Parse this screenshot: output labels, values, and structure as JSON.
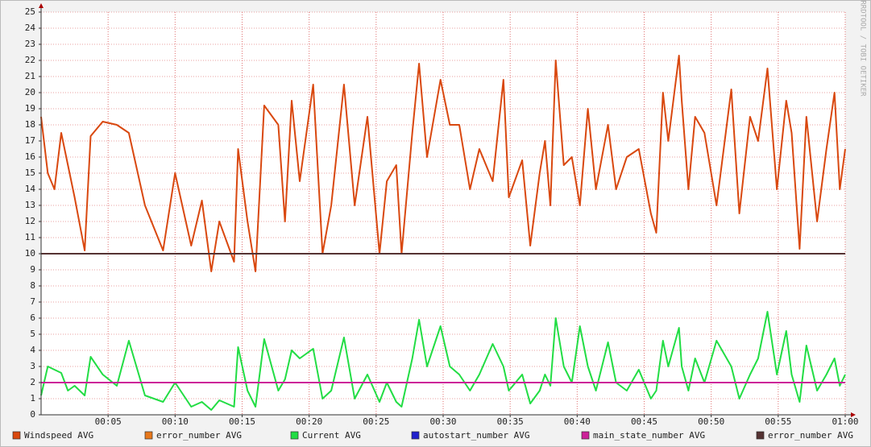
{
  "chart_data": {
    "type": "line",
    "watermark": "RRDTOOL / TOBI OETIKER",
    "xlim": [
      0,
      60
    ],
    "xticks": [
      {
        "value": 5,
        "label": "00:05"
      },
      {
        "value": 10,
        "label": "00:10"
      },
      {
        "value": 15,
        "label": "00:15"
      },
      {
        "value": 20,
        "label": "00:20"
      },
      {
        "value": 25,
        "label": "00:25"
      },
      {
        "value": 30,
        "label": "00:30"
      },
      {
        "value": 35,
        "label": "00:35"
      },
      {
        "value": 40,
        "label": "00:40"
      },
      {
        "value": 45,
        "label": "00:45"
      },
      {
        "value": 50,
        "label": "00:50"
      },
      {
        "value": 55,
        "label": "00:55"
      },
      {
        "value": 60,
        "label": "01:00"
      }
    ],
    "ylim": [
      0,
      25
    ],
    "yticks": [
      0,
      1,
      2,
      3,
      4,
      5,
      6,
      7,
      8,
      9,
      10,
      11,
      12,
      13,
      14,
      15,
      16,
      17,
      18,
      19,
      20,
      21,
      22,
      23,
      24,
      25
    ],
    "grid": true,
    "legend": "bottom",
    "series": [
      {
        "name": "Windspeed AVG",
        "color": "#d9480f",
        "x": [
          0,
          0.5,
          1,
          1.5,
          2,
          2.5,
          3.25,
          3.7,
          4.6,
          5.65,
          6.55,
          7.75,
          9.1,
          10,
          11.2,
          12,
          12.7,
          13.3,
          14.4,
          14.7,
          15.4,
          16,
          16.65,
          17.7,
          18.2,
          18.7,
          19.3,
          20.3,
          21,
          21.65,
          22.6,
          23.4,
          24.35,
          25.25,
          25.8,
          26.5,
          26.9,
          27.7,
          28.2,
          28.8,
          29.8,
          30.5,
          31.2,
          32,
          32.7,
          33.7,
          34.5,
          34.9,
          35.9,
          36.5,
          37.2,
          37.6,
          38,
          38.4,
          39,
          39.6,
          40.2,
          40.8,
          41.4,
          42.3,
          42.9,
          43.7,
          44.6,
          45.5,
          45.9,
          46.4,
          46.8,
          47.6,
          47.8,
          48.3,
          48.8,
          49.5,
          50.4,
          51.5,
          52.1,
          52.9,
          53.5,
          54.2,
          54.9,
          55.6,
          56,
          56.6,
          57.1,
          57.9,
          58.6,
          59.2,
          59.6,
          60
        ],
        "values": [
          18.5,
          15,
          14,
          17.5,
          15.5,
          13.5,
          10.2,
          17.3,
          18.2,
          18,
          17.5,
          13,
          10.2,
          15,
          10.5,
          13.3,
          8.9,
          12,
          9.5,
          16.5,
          12,
          8.9,
          19.2,
          18,
          12,
          19.5,
          14.5,
          20.5,
          10,
          13,
          20.5,
          13,
          18.5,
          10,
          14.5,
          15.5,
          10,
          17.5,
          21.8,
          16,
          20.8,
          18,
          18,
          14,
          16.5,
          14.5,
          20.8,
          13.5,
          15.8,
          10.5,
          15,
          17,
          13,
          22,
          15.5,
          16,
          13,
          19,
          14,
          18,
          14,
          16,
          16.5,
          12.5,
          11.3,
          20,
          17,
          22.3,
          19.5,
          14,
          18.5,
          17.5,
          13,
          20.2,
          12.5,
          18.5,
          17,
          21.5,
          14,
          19.5,
          17.5,
          10.3,
          18.5,
          12,
          16.5,
          20,
          14,
          16.5
        ]
      },
      {
        "name": "error_number AVG",
        "color": "#e8781c"
      },
      {
        "name": "Current AVG",
        "color": "#22dd44",
        "x": [
          0,
          0.5,
          1,
          1.5,
          2,
          2.5,
          3.25,
          3.7,
          4.6,
          5.65,
          6.55,
          7.75,
          9.1,
          10,
          11.2,
          12,
          12.7,
          13.3,
          14.4,
          14.7,
          15.4,
          16,
          16.65,
          17.7,
          18.2,
          18.7,
          19.3,
          20.3,
          21,
          21.65,
          22.6,
          23.4,
          24.35,
          25.25,
          25.8,
          26.5,
          26.9,
          27.7,
          28.2,
          28.8,
          29.8,
          30.5,
          31.2,
          32,
          32.7,
          33.7,
          34.5,
          34.9,
          35.9,
          36.5,
          37.2,
          37.6,
          38,
          38.4,
          39,
          39.6,
          40.2,
          40.8,
          41.4,
          42.3,
          42.9,
          43.7,
          44.6,
          45.5,
          45.9,
          46.4,
          46.8,
          47.6,
          47.8,
          48.3,
          48.8,
          49.5,
          50.4,
          51.5,
          52.1,
          52.9,
          53.5,
          54.2,
          54.9,
          55.6,
          56,
          56.6,
          57.1,
          57.9,
          58.6,
          59.2,
          59.6,
          60
        ],
        "values": [
          1.2,
          3,
          2.8,
          2.6,
          1.5,
          1.8,
          1.2,
          3.6,
          2.5,
          1.8,
          4.6,
          1.2,
          0.8,
          2,
          0.5,
          0.8,
          0.3,
          0.9,
          0.5,
          4.2,
          1.5,
          0.5,
          4.7,
          1.5,
          2.2,
          4,
          3.5,
          4.1,
          1,
          1.5,
          4.8,
          1,
          2.5,
          0.8,
          2,
          0.8,
          0.5,
          3.5,
          5.9,
          3,
          5.5,
          3,
          2.5,
          1.5,
          2.5,
          4.4,
          3,
          1.5,
          2.5,
          0.7,
          1.5,
          2.5,
          1.8,
          6,
          3,
          2,
          5.5,
          3,
          1.5,
          4.5,
          2,
          1.5,
          2.8,
          1,
          1.5,
          4.6,
          3,
          5.4,
          3,
          1.5,
          3.5,
          2,
          4.6,
          3,
          1,
          2.5,
          3.5,
          6.4,
          2.5,
          5.2,
          2.5,
          0.8,
          4.3,
          1.5,
          2.5,
          3.5,
          1.8,
          2.5
        ]
      },
      {
        "name": "autostart_number AVG",
        "color": "#2222cc"
      },
      {
        "name": "main_state_number AVG",
        "color": "#cc2299",
        "x": [
          0,
          60
        ],
        "values": [
          2,
          2
        ]
      },
      {
        "name": "error_number AVG",
        "color": "#553333",
        "x": [
          0,
          60
        ],
        "values": [
          10,
          10
        ]
      }
    ]
  }
}
